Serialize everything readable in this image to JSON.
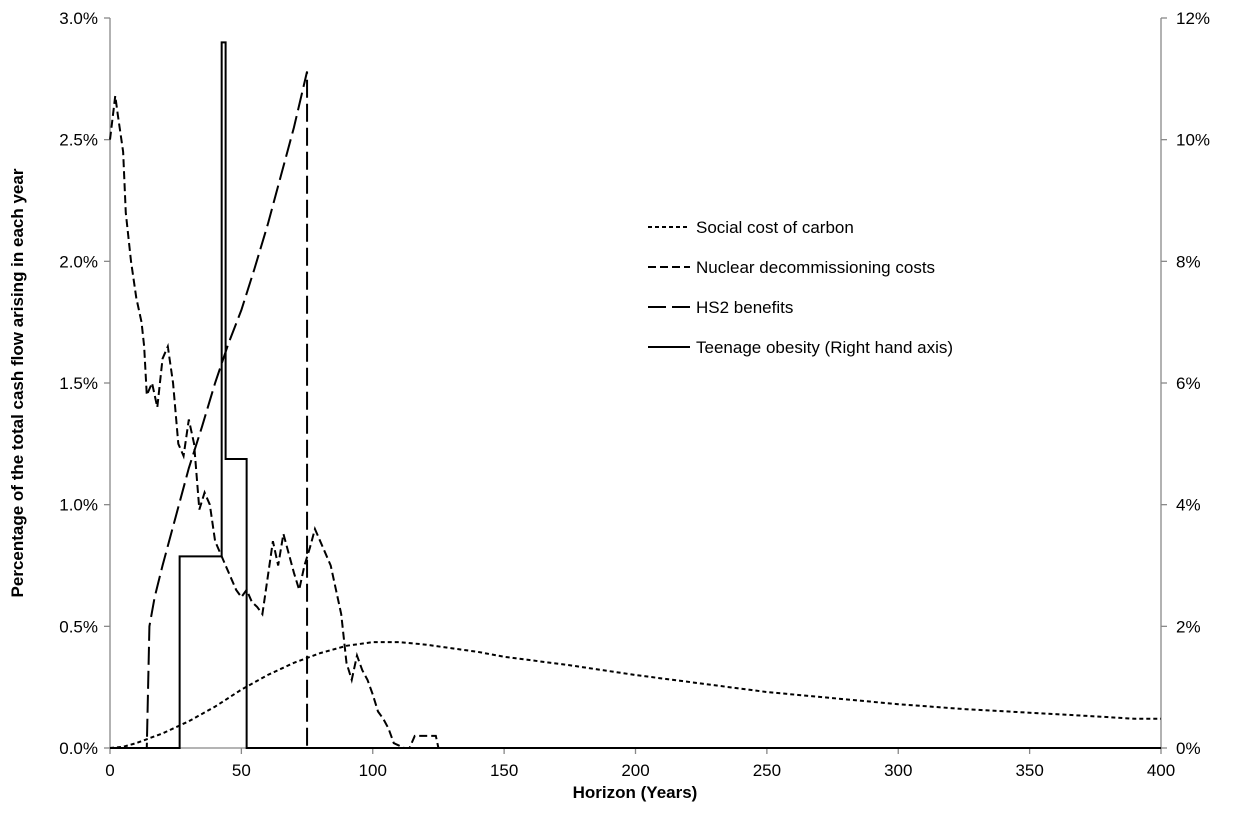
{
  "chart_data": {
    "type": "line",
    "title": "",
    "xlabel": "Horizon (Years)",
    "ylabel": "Percentage of the total cash flow arising in each year",
    "xlim": [
      0,
      400
    ],
    "ylim_left": [
      0,
      3.0
    ],
    "ylim_right": [
      0,
      12
    ],
    "x_ticks": [
      "0",
      "50",
      "100",
      "150",
      "200",
      "250",
      "300",
      "350",
      "400"
    ],
    "y_ticks_left": [
      "0.0%",
      "0.5%",
      "1.0%",
      "1.5%",
      "2.0%",
      "2.5%",
      "3.0%"
    ],
    "y_ticks_right": [
      "0%",
      "2%",
      "4%",
      "6%",
      "8%",
      "10%",
      "12%"
    ],
    "grid": false,
    "legend_position": "right-center",
    "series": [
      {
        "name": "Social cost of carbon",
        "axis": "left",
        "style": "short-dash",
        "points": [
          [
            0,
            0
          ],
          [
            5,
            0.005
          ],
          [
            10,
            0.02
          ],
          [
            15,
            0.04
          ],
          [
            20,
            0.06
          ],
          [
            25,
            0.085
          ],
          [
            30,
            0.11
          ],
          [
            40,
            0.17
          ],
          [
            50,
            0.24
          ],
          [
            60,
            0.3
          ],
          [
            70,
            0.35
          ],
          [
            80,
            0.39
          ],
          [
            90,
            0.42
          ],
          [
            100,
            0.435
          ],
          [
            110,
            0.435
          ],
          [
            120,
            0.425
          ],
          [
            130,
            0.41
          ],
          [
            140,
            0.395
          ],
          [
            150,
            0.375
          ],
          [
            175,
            0.34
          ],
          [
            200,
            0.3
          ],
          [
            225,
            0.265
          ],
          [
            250,
            0.23
          ],
          [
            275,
            0.205
          ],
          [
            300,
            0.18
          ],
          [
            325,
            0.16
          ],
          [
            350,
            0.145
          ],
          [
            375,
            0.13
          ],
          [
            390,
            0.12
          ],
          [
            400,
            0.12
          ]
        ]
      },
      {
        "name": "Nuclear decommissioning costs",
        "axis": "left",
        "style": "medium-dash",
        "points": [
          [
            0,
            2.5
          ],
          [
            2,
            2.68
          ],
          [
            3,
            2.6
          ],
          [
            5,
            2.45
          ],
          [
            6,
            2.2
          ],
          [
            8,
            2.0
          ],
          [
            10,
            1.85
          ],
          [
            12,
            1.75
          ],
          [
            13,
            1.65
          ],
          [
            14,
            1.45
          ],
          [
            16,
            1.5
          ],
          [
            18,
            1.4
          ],
          [
            20,
            1.6
          ],
          [
            22,
            1.65
          ],
          [
            24,
            1.5
          ],
          [
            26,
            1.25
          ],
          [
            28,
            1.2
          ],
          [
            30,
            1.35
          ],
          [
            32,
            1.25
          ],
          [
            34,
            0.98
          ],
          [
            36,
            1.05
          ],
          [
            38,
            1.0
          ],
          [
            40,
            0.85
          ],
          [
            42,
            0.8
          ],
          [
            44,
            0.75
          ],
          [
            46,
            0.7
          ],
          [
            48,
            0.65
          ],
          [
            50,
            0.62
          ],
          [
            52,
            0.65
          ],
          [
            54,
            0.6
          ],
          [
            56,
            0.58
          ],
          [
            58,
            0.55
          ],
          [
            60,
            0.7
          ],
          [
            62,
            0.85
          ],
          [
            64,
            0.75
          ],
          [
            66,
            0.88
          ],
          [
            68,
            0.8
          ],
          [
            70,
            0.72
          ],
          [
            72,
            0.65
          ],
          [
            74,
            0.75
          ],
          [
            76,
            0.82
          ],
          [
            78,
            0.9
          ],
          [
            80,
            0.85
          ],
          [
            82,
            0.8
          ],
          [
            84,
            0.75
          ],
          [
            86,
            0.65
          ],
          [
            88,
            0.55
          ],
          [
            90,
            0.35
          ],
          [
            92,
            0.28
          ],
          [
            94,
            0.38
          ],
          [
            96,
            0.32
          ],
          [
            98,
            0.28
          ],
          [
            100,
            0.22
          ],
          [
            102,
            0.15
          ],
          [
            104,
            0.12
          ],
          [
            106,
            0.08
          ],
          [
            108,
            0.02
          ],
          [
            110,
            0.01
          ],
          [
            112,
            0.0
          ],
          [
            114,
            0.0
          ],
          [
            116,
            0.05
          ],
          [
            118,
            0.05
          ],
          [
            120,
            0.05
          ],
          [
            124,
            0.05
          ],
          [
            125,
            0.0
          ],
          [
            400,
            0.0
          ]
        ]
      },
      {
        "name": "HS2 benefits",
        "axis": "left",
        "style": "long-dash",
        "points": [
          [
            0,
            0
          ],
          [
            14,
            0
          ],
          [
            15,
            0.5
          ],
          [
            17,
            0.62
          ],
          [
            20,
            0.75
          ],
          [
            25,
            0.95
          ],
          [
            30,
            1.15
          ],
          [
            35,
            1.32
          ],
          [
            40,
            1.5
          ],
          [
            45,
            1.66
          ],
          [
            50,
            1.8
          ],
          [
            55,
            1.97
          ],
          [
            60,
            2.15
          ],
          [
            65,
            2.35
          ],
          [
            70,
            2.55
          ],
          [
            75,
            2.78
          ],
          [
            75,
            0
          ],
          [
            400,
            0
          ]
        ]
      },
      {
        "name": "Teenage obesity (Right hand axis)",
        "axis": "right",
        "style": "solid",
        "points": [
          [
            0,
            0
          ],
          [
            26.5,
            0
          ],
          [
            26.5,
            3.15
          ],
          [
            42.5,
            3.15
          ],
          [
            42.5,
            11.6
          ],
          [
            44,
            11.6
          ],
          [
            44,
            4.75
          ],
          [
            52,
            4.75
          ],
          [
            52,
            0
          ],
          [
            400,
            0
          ]
        ]
      }
    ]
  }
}
